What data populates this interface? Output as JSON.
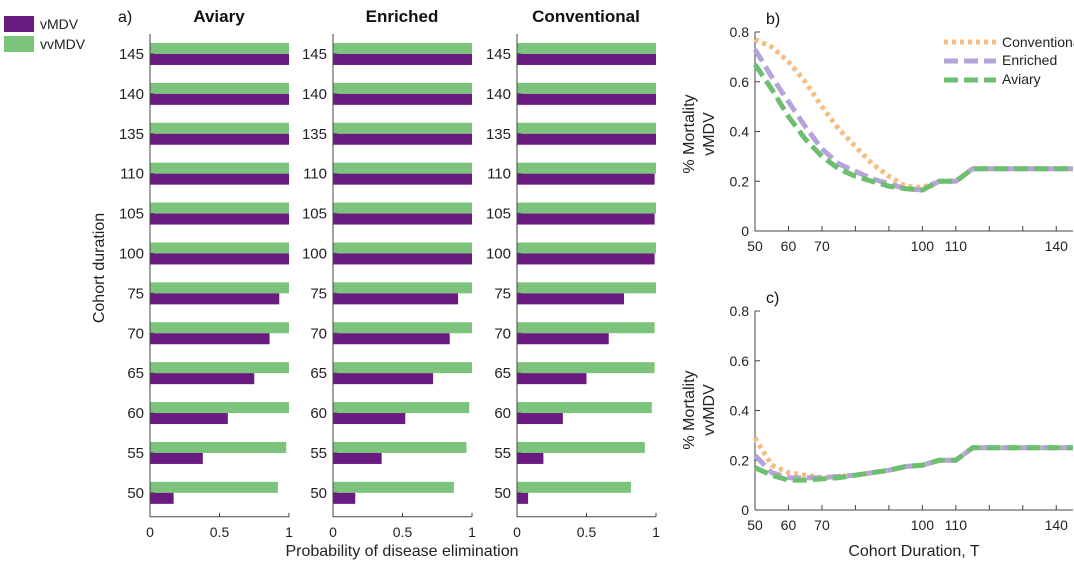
{
  "colors": {
    "vMDV": "#6a1b7f",
    "vvMDV": "#7cc47c",
    "Conventional": "#f6bd7f",
    "Enriched": "#b6a4d8",
    "Aviary": "#6cbf6e",
    "axis": "#444444"
  },
  "legend_a": [
    "vMDV",
    "vvMDV"
  ],
  "panel_labels": {
    "a": "a)",
    "b": "b)",
    "c": "c)"
  },
  "chart_data": [
    {
      "type": "bar",
      "orientation": "horizontal",
      "panel": "a",
      "xlabel": "Probability of disease elimination",
      "ylabel": "Cohort duration",
      "xlim": [
        0,
        1
      ],
      "xticks": [
        "0",
        "0.5",
        "1"
      ],
      "categories": [
        "145",
        "140",
        "135",
        "110",
        "105",
        "100",
        "75",
        "70",
        "65",
        "60",
        "55",
        "50"
      ],
      "facets": [
        {
          "title": "Aviary",
          "series": [
            {
              "name": "vvMDV",
              "values": [
                1.0,
                1.0,
                1.0,
                1.0,
                1.0,
                1.0,
                1.0,
                1.0,
                1.0,
                1.0,
                0.98,
                0.92
              ]
            },
            {
              "name": "vMDV",
              "values": [
                1.0,
                1.0,
                1.0,
                1.0,
                1.0,
                1.0,
                0.93,
                0.86,
                0.75,
                0.56,
                0.38,
                0.17
              ]
            }
          ]
        },
        {
          "title": "Enriched",
          "series": [
            {
              "name": "vvMDV",
              "values": [
                1.0,
                1.0,
                1.0,
                1.0,
                1.0,
                1.0,
                1.0,
                1.0,
                1.0,
                0.98,
                0.96,
                0.87
              ]
            },
            {
              "name": "vMDV",
              "values": [
                1.0,
                1.0,
                1.0,
                1.0,
                1.0,
                1.0,
                0.9,
                0.84,
                0.72,
                0.52,
                0.35,
                0.16
              ]
            }
          ]
        },
        {
          "title": "Conventional",
          "series": [
            {
              "name": "vvMDV",
              "values": [
                1.0,
                1.0,
                1.0,
                1.0,
                1.0,
                1.0,
                1.0,
                0.99,
                0.99,
                0.97,
                0.92,
                0.82
              ]
            },
            {
              "name": "vMDV",
              "values": [
                1.0,
                1.0,
                1.0,
                0.99,
                0.99,
                0.99,
                0.77,
                0.66,
                0.5,
                0.33,
                0.19,
                0.08
              ]
            }
          ]
        }
      ]
    },
    {
      "type": "line",
      "panel": "b",
      "ylabel_lines": [
        "% Mortality",
        "vMDV"
      ],
      "xlim": [
        50,
        145
      ],
      "ylim": [
        0,
        0.8
      ],
      "xticks": [
        50,
        60,
        70,
        80,
        90,
        100,
        110,
        120,
        130,
        140
      ],
      "yticks": [
        0,
        0.2,
        0.4,
        0.6,
        0.8
      ],
      "series": [
        {
          "name": "Conventional",
          "x": [
            50,
            55,
            60,
            65,
            70,
            75,
            80,
            85,
            90,
            95,
            100,
            105,
            110,
            115,
            120,
            125,
            130,
            135,
            140,
            145
          ],
          "y": [
            0.77,
            0.74,
            0.68,
            0.6,
            0.5,
            0.41,
            0.34,
            0.27,
            0.22,
            0.18,
            0.175,
            0.2,
            0.2,
            0.25,
            0.25,
            0.25,
            0.25,
            0.25,
            0.25,
            0.25
          ]
        },
        {
          "name": "Enriched",
          "x": [
            50,
            55,
            60,
            65,
            70,
            75,
            80,
            85,
            90,
            95,
            100,
            105,
            110,
            115,
            120,
            125,
            130,
            135,
            140,
            145
          ],
          "y": [
            0.73,
            0.62,
            0.52,
            0.42,
            0.33,
            0.27,
            0.24,
            0.21,
            0.19,
            0.17,
            0.165,
            0.2,
            0.2,
            0.25,
            0.25,
            0.25,
            0.25,
            0.25,
            0.25,
            0.25
          ]
        },
        {
          "name": "Aviary",
          "x": [
            50,
            55,
            60,
            65,
            70,
            75,
            80,
            85,
            90,
            95,
            100,
            105,
            110,
            115,
            120,
            125,
            130,
            135,
            140,
            145
          ],
          "y": [
            0.67,
            0.57,
            0.46,
            0.37,
            0.3,
            0.25,
            0.22,
            0.2,
            0.18,
            0.17,
            0.165,
            0.2,
            0.2,
            0.25,
            0.25,
            0.25,
            0.25,
            0.25,
            0.25,
            0.25
          ]
        }
      ],
      "legend_position": "top-right"
    },
    {
      "type": "line",
      "panel": "c",
      "ylabel_lines": [
        "% Mortality",
        "vvMDV"
      ],
      "xlabel": "Cohort Duration, T",
      "xlim": [
        50,
        145
      ],
      "ylim": [
        0,
        0.8
      ],
      "xticks": [
        50,
        60,
        70,
        80,
        90,
        100,
        110,
        120,
        130,
        140
      ],
      "yticks": [
        0,
        0.2,
        0.4,
        0.6,
        0.8
      ],
      "series": [
        {
          "name": "Conventional",
          "x": [
            50,
            55,
            60,
            65,
            70,
            75,
            80,
            85,
            90,
            95,
            100,
            105,
            110,
            115,
            120,
            125,
            130,
            135,
            140,
            145
          ],
          "y": [
            0.29,
            0.18,
            0.15,
            0.14,
            0.13,
            0.135,
            0.14,
            0.15,
            0.16,
            0.175,
            0.18,
            0.2,
            0.2,
            0.25,
            0.25,
            0.25,
            0.25,
            0.25,
            0.25,
            0.25
          ]
        },
        {
          "name": "Enriched",
          "x": [
            50,
            55,
            60,
            65,
            70,
            75,
            80,
            85,
            90,
            95,
            100,
            105,
            110,
            115,
            120,
            125,
            130,
            135,
            140,
            145
          ],
          "y": [
            0.22,
            0.15,
            0.13,
            0.13,
            0.13,
            0.135,
            0.14,
            0.15,
            0.16,
            0.175,
            0.18,
            0.2,
            0.2,
            0.25,
            0.25,
            0.25,
            0.25,
            0.25,
            0.25,
            0.25
          ]
        },
        {
          "name": "Aviary",
          "x": [
            50,
            55,
            60,
            65,
            70,
            75,
            80,
            85,
            90,
            95,
            100,
            105,
            110,
            115,
            120,
            125,
            130,
            135,
            140,
            145
          ],
          "y": [
            0.17,
            0.14,
            0.12,
            0.12,
            0.125,
            0.13,
            0.14,
            0.15,
            0.16,
            0.175,
            0.18,
            0.2,
            0.2,
            0.25,
            0.25,
            0.25,
            0.25,
            0.25,
            0.25,
            0.25
          ]
        }
      ]
    }
  ]
}
